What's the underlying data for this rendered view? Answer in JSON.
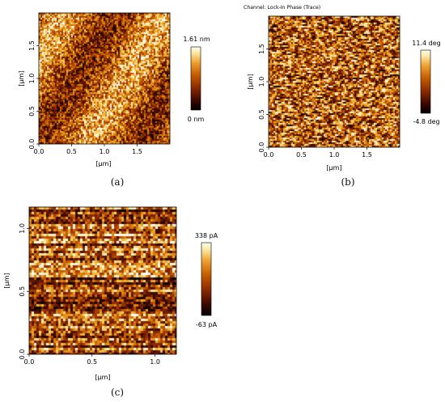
{
  "figures": [
    {
      "id": "a",
      "caption": "(a)",
      "x_ticks": [
        "0.0",
        "0.5",
        "1.0",
        "1.5"
      ],
      "x_tick_values": [
        0.0,
        0.5,
        1.0,
        1.5
      ],
      "y_ticks": [
        "0.0",
        "0.5",
        "1.0",
        "1.5"
      ],
      "y_tick_values": [
        0.0,
        0.5,
        1.0,
        1.5
      ],
      "x_range": [
        0,
        2.0
      ],
      "y_range": [
        0,
        2.0
      ],
      "xlabel": "[μm]",
      "ylabel": "[μm]",
      "colorbar_max": "1.61 nm",
      "colorbar_min": "0 nm",
      "title": ""
    },
    {
      "id": "b",
      "caption": "(b)",
      "x_ticks": [
        "0.0",
        "0.5",
        "1.0",
        "1.5"
      ],
      "x_tick_values": [
        0.0,
        0.5,
        1.0,
        1.5
      ],
      "y_ticks": [
        "0.0",
        "0.5",
        "1.0",
        "1.5"
      ],
      "y_tick_values": [
        0.0,
        0.5,
        1.0,
        1.5
      ],
      "x_range": [
        0,
        2.0
      ],
      "y_range": [
        0,
        2.0
      ],
      "xlabel": "[μm]",
      "ylabel": "[μm]",
      "colorbar_max": "11.4 deg",
      "colorbar_min": "-4.8 deg",
      "title": "Channel: Lock-In Phase (Trace)"
    },
    {
      "id": "c",
      "caption": "(c)",
      "x_ticks": [
        "0.0",
        "0.5",
        "1.0"
      ],
      "x_tick_values": [
        0.0,
        0.5,
        1.0
      ],
      "y_ticks": [
        "0.0",
        "0.5",
        "1.0"
      ],
      "y_tick_values": [
        0.0,
        0.5,
        1.0
      ],
      "x_range": [
        0,
        1.17
      ],
      "y_range": [
        0,
        1.17
      ],
      "xlabel": "[μm]",
      "ylabel": "[μm]",
      "colorbar_max": "338 pA",
      "colorbar_min": "-63 pA",
      "title": ""
    }
  ],
  "colors": {
    "colormap": [
      "#000000",
      "#3a0800",
      "#7a2000",
      "#b84a00",
      "#e08a10",
      "#f5c850",
      "#fff8d8",
      "#ffffff"
    ]
  }
}
